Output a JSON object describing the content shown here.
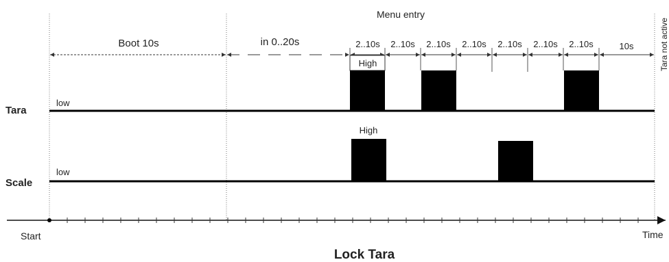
{
  "diagram": {
    "title": "Lock Tara",
    "signals": [
      {
        "name": "Tara",
        "low_label": "low",
        "high_label": "High"
      },
      {
        "name": "Scale",
        "low_label": "low",
        "high_label": "High"
      }
    ],
    "phases": {
      "menu_entry": "Menu entry",
      "boot": "Boot 10s",
      "wait": "in 0..20s",
      "step": "2..10s",
      "final": "10s",
      "tara_not_active": "Tara not active"
    },
    "axis": {
      "start": "Start",
      "end": "Time"
    }
  }
}
